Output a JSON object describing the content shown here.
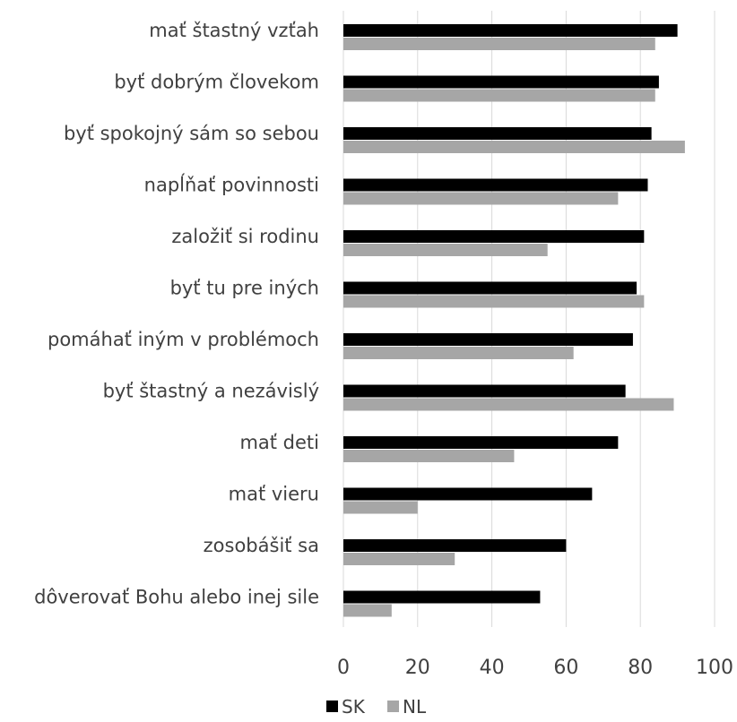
{
  "chart_data": {
    "type": "bar",
    "orientation": "horizontal",
    "categories": [
      "mať štastný vzťah",
      "byť dobrým človekom",
      "byť spokojný sám so sebou",
      "napĺňať povinnosti",
      "založiť si rodinu",
      "byť tu pre iných",
      "pomáhať iným v problémoch",
      "byť štastný a nezávislý",
      "mať deti",
      "mať vieru",
      "zosobášiť sa",
      "dôverovať Bohu alebo inej sile"
    ],
    "series": [
      {
        "name": "SK",
        "color": "#000000",
        "values": [
          90,
          85,
          83,
          82,
          81,
          79,
          78,
          76,
          74,
          67,
          60,
          53
        ]
      },
      {
        "name": "NL",
        "color": "#a6a6a6",
        "values": [
          84,
          84,
          92,
          74,
          55,
          81,
          62,
          89,
          46,
          20,
          30,
          13
        ]
      }
    ],
    "xlim": [
      0,
      100
    ],
    "xticks": [
      0,
      20,
      40,
      60,
      80,
      100
    ],
    "grid": true,
    "legend_position": "bottom"
  }
}
